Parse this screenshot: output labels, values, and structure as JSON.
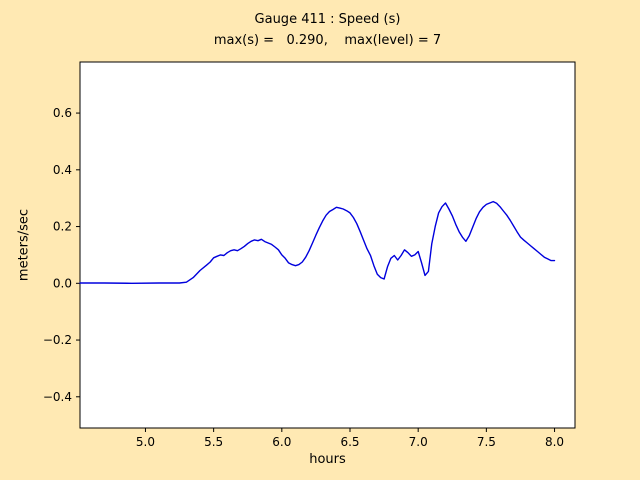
{
  "figure": {
    "background": "#ffe9b3",
    "title": "Gauge 411 : Speed (s)",
    "subtitle": "max(s) =   0.290,    max(level) = 7",
    "xlabel": "hours",
    "ylabel": "meters/sec"
  },
  "chart_data": {
    "type": "line",
    "title": "Gauge 411 : Speed (s)",
    "subtitle": "max(s) =   0.290,    max(level) = 7",
    "xlabel": "hours",
    "ylabel": "meters/sec",
    "max_s": 0.29,
    "max_level": 7,
    "line_color": "#0000dd",
    "axis_color": "#000000",
    "plot_background": "#ffffff",
    "grid": false,
    "legend": "none",
    "xlim": [
      4.52,
      8.15
    ],
    "ylim": [
      -0.51,
      0.78
    ],
    "x_ticks": [
      5.0,
      5.5,
      6.0,
      6.5,
      7.0,
      7.5,
      8.0
    ],
    "y_ticks": [
      -0.4,
      -0.2,
      0.0,
      0.2,
      0.4,
      0.6
    ],
    "points": [
      [
        4.52,
        0.001
      ],
      [
        4.7,
        0.001
      ],
      [
        4.9,
        0.0
      ],
      [
        5.1,
        0.001
      ],
      [
        5.25,
        0.001
      ],
      [
        5.3,
        0.004
      ],
      [
        5.35,
        0.02
      ],
      [
        5.4,
        0.045
      ],
      [
        5.45,
        0.065
      ],
      [
        5.475,
        0.075
      ],
      [
        5.5,
        0.09
      ],
      [
        5.525,
        0.095
      ],
      [
        5.55,
        0.1
      ],
      [
        5.575,
        0.098
      ],
      [
        5.6,
        0.108
      ],
      [
        5.625,
        0.115
      ],
      [
        5.65,
        0.118
      ],
      [
        5.675,
        0.115
      ],
      [
        5.7,
        0.122
      ],
      [
        5.725,
        0.13
      ],
      [
        5.75,
        0.14
      ],
      [
        5.775,
        0.148
      ],
      [
        5.8,
        0.153
      ],
      [
        5.825,
        0.15
      ],
      [
        5.85,
        0.155
      ],
      [
        5.875,
        0.147
      ],
      [
        5.9,
        0.142
      ],
      [
        5.925,
        0.137
      ],
      [
        5.95,
        0.128
      ],
      [
        5.975,
        0.118
      ],
      [
        6.0,
        0.1
      ],
      [
        6.025,
        0.088
      ],
      [
        6.05,
        0.072
      ],
      [
        6.075,
        0.066
      ],
      [
        6.1,
        0.062
      ],
      [
        6.125,
        0.066
      ],
      [
        6.15,
        0.075
      ],
      [
        6.175,
        0.092
      ],
      [
        6.2,
        0.115
      ],
      [
        6.225,
        0.142
      ],
      [
        6.25,
        0.17
      ],
      [
        6.275,
        0.196
      ],
      [
        6.3,
        0.22
      ],
      [
        6.325,
        0.24
      ],
      [
        6.35,
        0.253
      ],
      [
        6.375,
        0.26
      ],
      [
        6.4,
        0.268
      ],
      [
        6.425,
        0.265
      ],
      [
        6.45,
        0.262
      ],
      [
        6.475,
        0.256
      ],
      [
        6.5,
        0.248
      ],
      [
        6.525,
        0.232
      ],
      [
        6.55,
        0.21
      ],
      [
        6.575,
        0.182
      ],
      [
        6.6,
        0.152
      ],
      [
        6.625,
        0.122
      ],
      [
        6.65,
        0.098
      ],
      [
        6.675,
        0.062
      ],
      [
        6.7,
        0.032
      ],
      [
        6.725,
        0.02
      ],
      [
        6.75,
        0.015
      ],
      [
        6.775,
        0.058
      ],
      [
        6.8,
        0.088
      ],
      [
        6.825,
        0.098
      ],
      [
        6.85,
        0.082
      ],
      [
        6.875,
        0.098
      ],
      [
        6.9,
        0.118
      ],
      [
        6.925,
        0.108
      ],
      [
        6.95,
        0.095
      ],
      [
        6.975,
        0.1
      ],
      [
        7.0,
        0.112
      ],
      [
        7.025,
        0.072
      ],
      [
        7.05,
        0.028
      ],
      [
        7.075,
        0.042
      ],
      [
        7.1,
        0.14
      ],
      [
        7.125,
        0.2
      ],
      [
        7.15,
        0.248
      ],
      [
        7.175,
        0.27
      ],
      [
        7.2,
        0.283
      ],
      [
        7.225,
        0.262
      ],
      [
        7.25,
        0.238
      ],
      [
        7.275,
        0.208
      ],
      [
        7.3,
        0.182
      ],
      [
        7.325,
        0.162
      ],
      [
        7.35,
        0.148
      ],
      [
        7.375,
        0.168
      ],
      [
        7.4,
        0.198
      ],
      [
        7.425,
        0.228
      ],
      [
        7.45,
        0.252
      ],
      [
        7.475,
        0.268
      ],
      [
        7.5,
        0.278
      ],
      [
        7.525,
        0.283
      ],
      [
        7.55,
        0.288
      ],
      [
        7.575,
        0.282
      ],
      [
        7.6,
        0.27
      ],
      [
        7.625,
        0.255
      ],
      [
        7.65,
        0.24
      ],
      [
        7.675,
        0.222
      ],
      [
        7.7,
        0.202
      ],
      [
        7.725,
        0.182
      ],
      [
        7.75,
        0.163
      ],
      [
        7.775,
        0.152
      ],
      [
        7.8,
        0.142
      ],
      [
        7.825,
        0.132
      ],
      [
        7.85,
        0.122
      ],
      [
        7.875,
        0.112
      ],
      [
        7.9,
        0.102
      ],
      [
        7.925,
        0.092
      ],
      [
        7.95,
        0.086
      ],
      [
        7.975,
        0.08
      ],
      [
        8.0,
        0.08
      ]
    ]
  }
}
